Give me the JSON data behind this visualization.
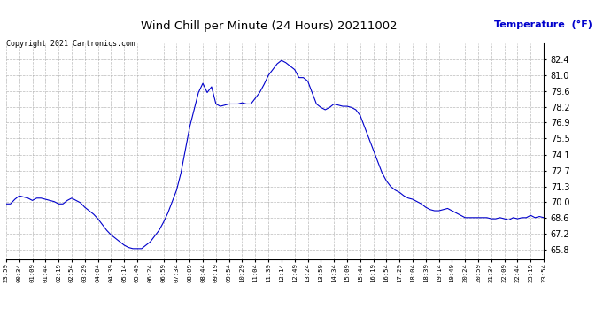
{
  "title": "Wind Chill per Minute (24 Hours) 20211002",
  "ylabel": "Temperature  (°F)",
  "copyright": "Copyright 2021 Cartronics.com",
  "line_color": "#0000cc",
  "ylabel_color": "#0000cc",
  "background_color": "#ffffff",
  "plot_bg_color": "#ffffff",
  "grid_color": "#aaaaaa",
  "ylim": [
    65.0,
    83.8
  ],
  "yticks": [
    65.8,
    67.2,
    68.6,
    70.0,
    71.3,
    72.7,
    74.1,
    75.5,
    76.9,
    78.2,
    79.6,
    81.0,
    82.4
  ],
  "xtick_labels": [
    "23:59",
    "00:34",
    "01:09",
    "01:44",
    "02:19",
    "02:54",
    "03:29",
    "04:04",
    "04:39",
    "05:14",
    "05:49",
    "06:24",
    "06:59",
    "07:34",
    "08:09",
    "08:44",
    "09:19",
    "09:54",
    "10:29",
    "11:04",
    "11:39",
    "12:14",
    "12:49",
    "13:24",
    "13:59",
    "14:34",
    "15:09",
    "15:44",
    "16:19",
    "16:54",
    "17:29",
    "18:04",
    "18:39",
    "19:14",
    "19:49",
    "20:24",
    "20:59",
    "21:34",
    "22:09",
    "22:44",
    "23:19",
    "23:54"
  ],
  "data_y": [
    69.8,
    69.8,
    70.2,
    70.5,
    70.4,
    70.3,
    70.1,
    70.3,
    70.3,
    70.2,
    70.1,
    70.0,
    69.8,
    69.8,
    70.1,
    70.3,
    70.1,
    69.9,
    69.5,
    69.2,
    68.9,
    68.5,
    68.0,
    67.5,
    67.1,
    66.8,
    66.5,
    66.2,
    66.0,
    65.9,
    65.9,
    65.9,
    66.2,
    66.5,
    67.0,
    67.5,
    68.2,
    69.0,
    70.0,
    71.0,
    72.5,
    74.5,
    76.5,
    78.0,
    79.5,
    80.3,
    79.5,
    80.0,
    78.5,
    78.3,
    78.4,
    78.5,
    78.5,
    78.5,
    78.6,
    78.5,
    78.5,
    79.0,
    79.5,
    80.2,
    81.0,
    81.5,
    82.0,
    82.3,
    82.1,
    81.8,
    81.5,
    80.8,
    80.8,
    80.5,
    79.5,
    78.5,
    78.2,
    78.0,
    78.2,
    78.5,
    78.4,
    78.3,
    78.3,
    78.2,
    78.0,
    77.5,
    76.5,
    75.5,
    74.5,
    73.5,
    72.5,
    71.8,
    71.3,
    71.0,
    70.8,
    70.5,
    70.3,
    70.2,
    70.0,
    69.8,
    69.5,
    69.3,
    69.2,
    69.2,
    69.3,
    69.4,
    69.2,
    69.0,
    68.8,
    68.6,
    68.6,
    68.6,
    68.6,
    68.6,
    68.6,
    68.5,
    68.5,
    68.6,
    68.5,
    68.4,
    68.6,
    68.5,
    68.6,
    68.6,
    68.8,
    68.6,
    68.7,
    68.6
  ]
}
